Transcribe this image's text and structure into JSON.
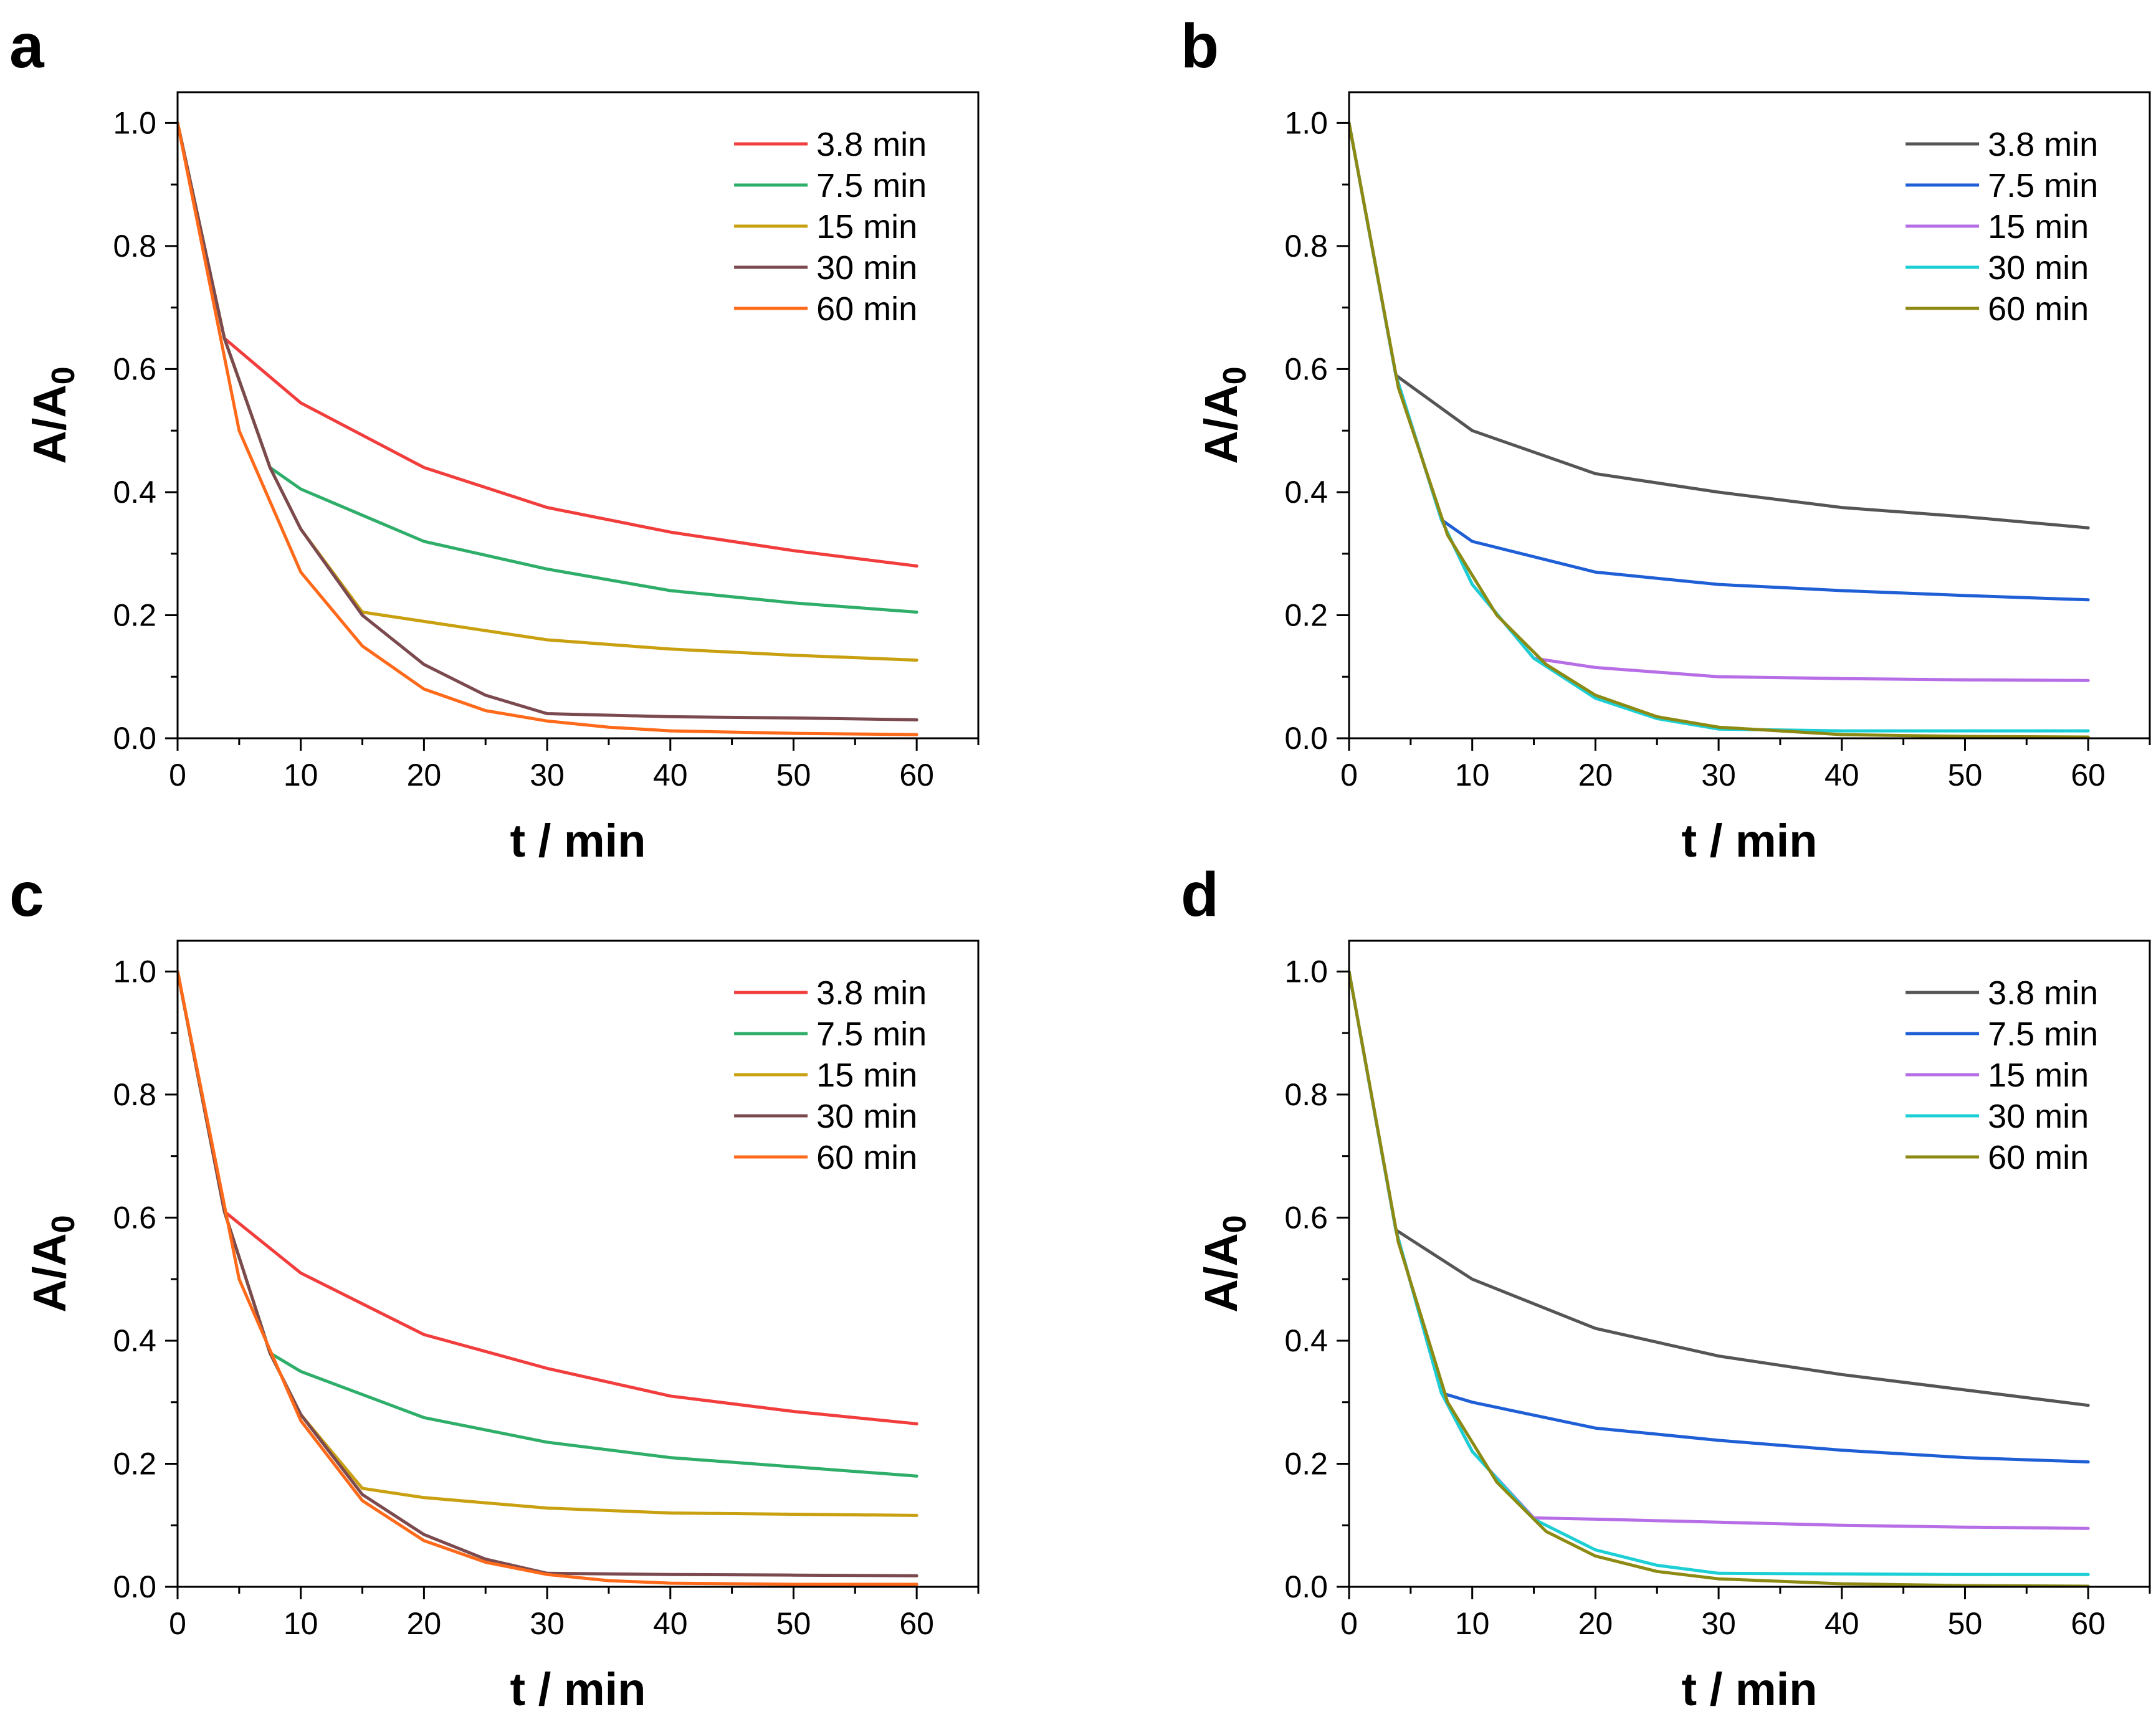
{
  "chart_data": [
    {
      "panel": "a",
      "type": "line",
      "xlabel": "t / min",
      "ylabel": "A/A0",
      "ylabel_main": "A/A",
      "ylabel_sub": "0",
      "xlim": [
        0,
        65
      ],
      "ylim": [
        0,
        1.05
      ],
      "xticks": [
        "0",
        "10",
        "20",
        "30",
        "40",
        "50",
        "60"
      ],
      "yticks": [
        "0.0",
        "0.2",
        "0.4",
        "0.6",
        "0.8",
        "1.0"
      ],
      "legend_position": "top-right",
      "series": [
        {
          "name": "3.8 min",
          "color": "#f23d3d",
          "x": [
            0,
            3.8,
            10,
            20,
            30,
            40,
            50,
            60
          ],
          "y": [
            1.0,
            0.65,
            0.545,
            0.44,
            0.375,
            0.335,
            0.305,
            0.28
          ]
        },
        {
          "name": "7.5 min",
          "color": "#2fae6a",
          "x": [
            0,
            3.8,
            7.5,
            10,
            20,
            30,
            40,
            50,
            60
          ],
          "y": [
            1.0,
            0.65,
            0.44,
            0.405,
            0.32,
            0.275,
            0.24,
            0.22,
            0.205
          ]
        },
        {
          "name": "15 min",
          "color": "#c9a010",
          "x": [
            0,
            3.8,
            7.5,
            10,
            15,
            20,
            30,
            40,
            50,
            60
          ],
          "y": [
            1.0,
            0.65,
            0.44,
            0.34,
            0.205,
            0.19,
            0.16,
            0.145,
            0.135,
            0.127
          ]
        },
        {
          "name": "30 min",
          "color": "#7b4a4f",
          "x": [
            0,
            3.8,
            7.5,
            10,
            15,
            20,
            25,
            30,
            40,
            50,
            60
          ],
          "y": [
            1.0,
            0.65,
            0.44,
            0.34,
            0.2,
            0.12,
            0.07,
            0.04,
            0.035,
            0.033,
            0.03
          ]
        },
        {
          "name": "60 min",
          "color": "#ff6a1a",
          "x": [
            0,
            5,
            10,
            15,
            20,
            25,
            30,
            35,
            40,
            50,
            60
          ],
          "y": [
            1.0,
            0.5,
            0.27,
            0.15,
            0.08,
            0.045,
            0.028,
            0.018,
            0.012,
            0.008,
            0.006
          ]
        }
      ]
    },
    {
      "panel": "b",
      "type": "line",
      "xlabel": "t / min",
      "ylabel": "A/A0",
      "ylabel_main": "A/A",
      "ylabel_sub": "0",
      "xlim": [
        0,
        65
      ],
      "ylim": [
        0,
        1.05
      ],
      "xticks": [
        "0",
        "10",
        "20",
        "30",
        "40",
        "50",
        "60"
      ],
      "yticks": [
        "0.0",
        "0.2",
        "0.4",
        "0.6",
        "0.8",
        "1.0"
      ],
      "legend_position": "top-right",
      "series": [
        {
          "name": "3.8 min",
          "color": "#555555",
          "x": [
            0,
            3.8,
            10,
            20,
            30,
            40,
            50,
            60
          ],
          "y": [
            1.0,
            0.59,
            0.5,
            0.43,
            0.4,
            0.375,
            0.36,
            0.342
          ]
        },
        {
          "name": "7.5 min",
          "color": "#1f5fd6",
          "x": [
            0,
            3.8,
            7.5,
            10,
            20,
            30,
            40,
            50,
            60
          ],
          "y": [
            1.0,
            0.59,
            0.355,
            0.32,
            0.27,
            0.25,
            0.24,
            0.232,
            0.225
          ]
        },
        {
          "name": "15 min",
          "color": "#b66de6",
          "x": [
            0,
            3.8,
            7.5,
            10,
            15,
            20,
            30,
            40,
            50,
            60
          ],
          "y": [
            1.0,
            0.59,
            0.355,
            0.25,
            0.13,
            0.115,
            0.1,
            0.097,
            0.095,
            0.094
          ]
        },
        {
          "name": "30 min",
          "color": "#1ccfd4",
          "x": [
            0,
            3.8,
            7.5,
            10,
            15,
            20,
            25,
            30,
            40,
            50,
            60
          ],
          "y": [
            1.0,
            0.59,
            0.355,
            0.25,
            0.13,
            0.065,
            0.032,
            0.015,
            0.012,
            0.012,
            0.012
          ]
        },
        {
          "name": "60 min",
          "color": "#8d8a14",
          "x": [
            0,
            4,
            8,
            12,
            16,
            20,
            25,
            30,
            40,
            50,
            60
          ],
          "y": [
            1.0,
            0.57,
            0.33,
            0.2,
            0.12,
            0.07,
            0.035,
            0.018,
            0.006,
            0.003,
            0.002
          ]
        }
      ]
    },
    {
      "panel": "c",
      "type": "line",
      "xlabel": "t / min",
      "ylabel": "A/A0",
      "ylabel_main": "A/A",
      "ylabel_sub": "0",
      "xlim": [
        0,
        65
      ],
      "ylim": [
        0,
        1.05
      ],
      "xticks": [
        "0",
        "10",
        "20",
        "30",
        "40",
        "50",
        "60"
      ],
      "yticks": [
        "0.0",
        "0.2",
        "0.4",
        "0.6",
        "0.8",
        "1.0"
      ],
      "legend_position": "top-right",
      "series": [
        {
          "name": "3.8 min",
          "color": "#f23d3d",
          "x": [
            0,
            3.8,
            10,
            20,
            30,
            40,
            50,
            60
          ],
          "y": [
            1.0,
            0.61,
            0.51,
            0.41,
            0.355,
            0.31,
            0.285,
            0.265
          ]
        },
        {
          "name": "7.5 min",
          "color": "#2fae6a",
          "x": [
            0,
            3.8,
            7.5,
            10,
            20,
            30,
            40,
            50,
            60
          ],
          "y": [
            1.0,
            0.61,
            0.38,
            0.35,
            0.275,
            0.235,
            0.21,
            0.195,
            0.18
          ]
        },
        {
          "name": "15 min",
          "color": "#c9a010",
          "x": [
            0,
            3.8,
            7.5,
            10,
            15,
            20,
            30,
            40,
            50,
            60
          ],
          "y": [
            1.0,
            0.61,
            0.38,
            0.28,
            0.16,
            0.145,
            0.128,
            0.12,
            0.118,
            0.116
          ]
        },
        {
          "name": "30 min",
          "color": "#7b4a4f",
          "x": [
            0,
            3.8,
            7.5,
            10,
            15,
            20,
            25,
            30,
            40,
            50,
            60
          ],
          "y": [
            1.0,
            0.61,
            0.38,
            0.28,
            0.15,
            0.085,
            0.045,
            0.022,
            0.02,
            0.019,
            0.018
          ]
        },
        {
          "name": "60 min",
          "color": "#ff6a1a",
          "x": [
            0,
            5,
            10,
            15,
            20,
            25,
            30,
            35,
            40,
            50,
            60
          ],
          "y": [
            1.0,
            0.5,
            0.27,
            0.14,
            0.075,
            0.04,
            0.02,
            0.01,
            0.006,
            0.004,
            0.004
          ]
        }
      ]
    },
    {
      "panel": "d",
      "type": "line",
      "xlabel": "t / min",
      "ylabel": "A/A0",
      "ylabel_main": "A/A",
      "ylabel_sub": "0",
      "xlim": [
        0,
        65
      ],
      "ylim": [
        0,
        1.05
      ],
      "xticks": [
        "0",
        "10",
        "20",
        "30",
        "40",
        "50",
        "60"
      ],
      "yticks": [
        "0.0",
        "0.2",
        "0.4",
        "0.6",
        "0.8",
        "1.0"
      ],
      "legend_position": "top-right",
      "series": [
        {
          "name": "3.8 min",
          "color": "#555555",
          "x": [
            0,
            3.8,
            10,
            20,
            30,
            40,
            50,
            60
          ],
          "y": [
            1.0,
            0.58,
            0.5,
            0.42,
            0.375,
            0.345,
            0.32,
            0.295
          ]
        },
        {
          "name": "7.5 min",
          "color": "#1f5fd6",
          "x": [
            0,
            3.8,
            7.5,
            10,
            20,
            30,
            40,
            50,
            60
          ],
          "y": [
            1.0,
            0.58,
            0.315,
            0.3,
            0.258,
            0.238,
            0.222,
            0.21,
            0.203
          ]
        },
        {
          "name": "15 min",
          "color": "#b66de6",
          "x": [
            0,
            3.8,
            7.5,
            10,
            15,
            20,
            30,
            40,
            50,
            60
          ],
          "y": [
            1.0,
            0.58,
            0.315,
            0.22,
            0.112,
            0.11,
            0.105,
            0.1,
            0.097,
            0.095
          ]
        },
        {
          "name": "30 min",
          "color": "#1ccfd4",
          "x": [
            0,
            3.8,
            7.5,
            10,
            15,
            20,
            25,
            30,
            40,
            50,
            60
          ],
          "y": [
            1.0,
            0.58,
            0.315,
            0.22,
            0.11,
            0.06,
            0.035,
            0.022,
            0.021,
            0.02,
            0.02
          ]
        },
        {
          "name": "60 min",
          "color": "#8d8a14",
          "x": [
            0,
            4,
            8,
            12,
            16,
            20,
            25,
            30,
            40,
            50,
            60
          ],
          "y": [
            1.0,
            0.56,
            0.3,
            0.17,
            0.09,
            0.05,
            0.025,
            0.013,
            0.005,
            0.002,
            0.001
          ]
        }
      ]
    }
  ]
}
